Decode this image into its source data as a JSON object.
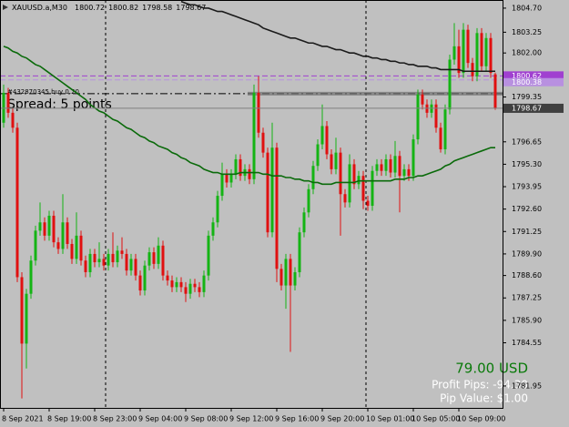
{
  "chart_data": {
    "type": "candlestick",
    "title": "XAUUSD.a,M30",
    "categories": [
      "8 Sep 2021",
      null,
      null,
      null,
      null,
      null,
      null,
      null,
      null,
      null,
      "8 Sep 19:00",
      null,
      null,
      null,
      null,
      null,
      null,
      null,
      null,
      null,
      "8 Sep 23:00",
      null,
      null,
      null,
      null,
      null,
      null,
      null,
      null,
      null,
      "9 Sep 04:00",
      null,
      null,
      null,
      null,
      null,
      null,
      null,
      null,
      null,
      "9 Sep 08:00",
      null,
      null,
      null,
      null,
      null,
      null,
      null,
      null,
      null,
      "9 Sep 12:00",
      null,
      null,
      null,
      null,
      null,
      null,
      null,
      null,
      null,
      "9 Sep 16:00",
      null,
      null,
      null,
      null,
      null,
      null,
      null,
      null,
      null,
      "9 Sep 20:00",
      null,
      null,
      null,
      null,
      null,
      null,
      null,
      null,
      null,
      "10 Sep 01:00",
      null,
      null,
      null,
      null,
      null,
      null,
      null,
      null,
      null,
      "10 Sep 05:00",
      null,
      null,
      null,
      null,
      null,
      null,
      null,
      null,
      null,
      "10 Sep 09:00",
      null,
      null,
      null,
      null,
      null,
      null,
      null,
      null
    ],
    "open": [
      1797.8,
      1799.6,
      1798.4,
      1797.5,
      1788.5,
      1784.5,
      1787.5,
      1789.5,
      1791.3,
      1791.8,
      1791.0,
      1792.2,
      1790.6,
      1790.2,
      1791.8,
      1790.5,
      1789.6,
      1791.0,
      1789.5,
      1788.8,
      1789.9,
      1789.4,
      1789.6,
      1789.2,
      1789.9,
      1789.4,
      1790.1,
      1789.9,
      1788.9,
      1789.6,
      1788.6,
      1787.7,
      1789.2,
      1790.0,
      1789.3,
      1790.4,
      1788.6,
      1788.3,
      1787.9,
      1788.2,
      1787.9,
      1787.5,
      1788.1,
      1787.9,
      1787.6,
      1788.6,
      1791.0,
      1791.8,
      1793.4,
      1794.7,
      1794.2,
      1794.7,
      1795.6,
      1794.6,
      1795.0,
      1794.4,
      1799.6,
      1797.2,
      1796.0,
      1791.2,
      1796.3,
      1789.0,
      1788.0,
      1789.6,
      1788.0,
      1788.8,
      1791.2,
      1792.4,
      1793.8,
      1795.2,
      1796.5,
      1797.6,
      1795.9,
      1795.0,
      1796.0,
      1793.5,
      1793.0,
      1795.3,
      1794.1,
      1794.6,
      1793.1,
      1792.8,
      1794.9,
      1795.3,
      1794.9,
      1795.6,
      1794.8,
      1795.8,
      1794.6,
      1795.0,
      1794.6,
      1796.8,
      1799.5,
      1798.9,
      1798.4,
      1798.9,
      1797.5,
      1796.2,
      1798.6,
      1801.6,
      1802.4,
      1800.8,
      1803.4,
      1801.4,
      1800.6,
      1803.2,
      1801.2,
      1802.9,
      1800.72
    ],
    "high": [
      1800.1,
      1799.9,
      1798.7,
      1797.8,
      1788.8,
      1787.8,
      1789.8,
      1791.6,
      1793.0,
      1792.1,
      1792.5,
      1792.5,
      1790.9,
      1793.5,
      1792.1,
      1790.8,
      1792.4,
      1791.3,
      1789.8,
      1790.2,
      1790.2,
      1790.6,
      1789.9,
      1790.2,
      1791.2,
      1790.4,
      1790.9,
      1790.2,
      1789.9,
      1789.9,
      1788.9,
      1789.5,
      1790.3,
      1790.3,
      1790.9,
      1790.7,
      1788.9,
      1788.6,
      1788.5,
      1788.5,
      1788.2,
      1788.4,
      1788.4,
      1788.2,
      1788.9,
      1791.3,
      1792.1,
      1793.7,
      1795.4,
      1795.0,
      1795.0,
      1795.9,
      1795.9,
      1795.3,
      1795.3,
      1800.1,
      1800.6,
      1797.5,
      1796.3,
      1797.8,
      1796.6,
      1789.3,
      1789.9,
      1789.9,
      1789.1,
      1791.5,
      1792.7,
      1794.1,
      1795.5,
      1796.8,
      1798.9,
      1797.9,
      1796.2,
      1796.9,
      1796.3,
      1793.8,
      1795.9,
      1795.6,
      1794.9,
      1794.9,
      1793.4,
      1795.2,
      1795.6,
      1795.6,
      1795.9,
      1795.9,
      1796.7,
      1796.1,
      1795.3,
      1795.3,
      1797.1,
      1799.8,
      1799.8,
      1799.2,
      1799.2,
      1799.2,
      1797.8,
      1798.9,
      1801.9,
      1803.8,
      1803.4,
      1803.8,
      1803.7,
      1801.7,
      1803.5,
      1803.5,
      1803.2,
      1803.2,
      1800.82
    ],
    "low": [
      1797.5,
      1798.1,
      1797.2,
      1788.2,
      1781.2,
      1783.0,
      1787.2,
      1789.2,
      1791.0,
      1790.7,
      1790.7,
      1790.3,
      1789.9,
      1789.9,
      1790.2,
      1789.3,
      1789.3,
      1789.2,
      1788.5,
      1788.5,
      1789.1,
      1789.1,
      1788.9,
      1788.9,
      1789.1,
      1789.1,
      1789.6,
      1788.6,
      1788.6,
      1788.3,
      1787.4,
      1787.4,
      1788.9,
      1789.0,
      1789.0,
      1788.3,
      1788.0,
      1787.6,
      1787.6,
      1787.6,
      1787.0,
      1787.2,
      1787.6,
      1787.3,
      1787.3,
      1788.3,
      1790.7,
      1791.5,
      1793.1,
      1793.9,
      1793.9,
      1794.4,
      1794.3,
      1794.3,
      1794.1,
      1794.1,
      1796.9,
      1795.7,
      1790.9,
      1790.9,
      1788.2,
      1787.7,
      1786.6,
      1784.0,
      1787.7,
      1788.5,
      1790.9,
      1792.1,
      1793.5,
      1794.9,
      1796.2,
      1795.6,
      1794.7,
      1794.7,
      1791.0,
      1792.7,
      1792.7,
      1793.8,
      1793.8,
      1792.6,
      1792.5,
      1792.5,
      1794.6,
      1794.6,
      1794.6,
      1794.5,
      1794.5,
      1792.4,
      1794.3,
      1794.3,
      1794.3,
      1796.5,
      1798.6,
      1798.1,
      1798.1,
      1797.2,
      1796.0,
      1795.9,
      1798.3,
      1801.3,
      1800.5,
      1800.5,
      1801.1,
      1800.3,
      1800.3,
      1800.9,
      1800.9,
      1800.5,
      1798.58
    ],
    "close": [
      1799.6,
      1798.4,
      1797.5,
      1788.5,
      1784.5,
      1787.5,
      1789.5,
      1791.3,
      1791.8,
      1791.0,
      1792.2,
      1790.6,
      1790.2,
      1791.8,
      1790.5,
      1789.6,
      1791.0,
      1789.5,
      1788.8,
      1789.9,
      1789.4,
      1789.6,
      1789.2,
      1789.9,
      1789.4,
      1790.1,
      1789.9,
      1788.9,
      1789.6,
      1788.6,
      1787.7,
      1789.2,
      1790.0,
      1789.3,
      1790.4,
      1788.6,
      1788.3,
      1787.9,
      1788.2,
      1787.9,
      1787.5,
      1788.1,
      1787.9,
      1787.6,
      1788.6,
      1791.0,
      1791.8,
      1793.4,
      1794.7,
      1794.2,
      1794.7,
      1795.6,
      1794.6,
      1795.0,
      1794.4,
      1799.6,
      1797.2,
      1796.0,
      1791.2,
      1796.3,
      1789.0,
      1788.0,
      1789.6,
      1788.0,
      1788.8,
      1791.2,
      1792.4,
      1793.8,
      1795.2,
      1796.5,
      1797.6,
      1795.9,
      1795.0,
      1796.0,
      1793.5,
      1793.0,
      1795.3,
      1794.1,
      1794.6,
      1793.1,
      1792.8,
      1794.9,
      1795.3,
      1794.9,
      1795.6,
      1794.8,
      1795.8,
      1794.6,
      1795.0,
      1794.6,
      1796.8,
      1799.5,
      1798.9,
      1798.4,
      1798.9,
      1797.5,
      1796.2,
      1798.6,
      1801.6,
      1802.4,
      1800.8,
      1803.4,
      1801.4,
      1800.6,
      1803.2,
      1801.2,
      1802.9,
      1800.8,
      1798.67
    ],
    "up_color": "#14b414",
    "down_color": "#e01010",
    "series": [
      {
        "type": "line",
        "color": "#0a6a0a",
        "values": [
          1802.4,
          1802.3,
          1802.1,
          1802.0,
          1801.8,
          1801.7,
          1801.5,
          1801.3,
          1801.2,
          1801.0,
          1800.8,
          1800.6,
          1800.4,
          1800.2,
          1800.0,
          1799.8,
          1799.6,
          1799.4,
          1799.2,
          1798.9,
          1798.7,
          1798.5,
          1798.4,
          1798.2,
          1798.0,
          1797.9,
          1797.7,
          1797.5,
          1797.4,
          1797.2,
          1797.0,
          1796.9,
          1796.7,
          1796.6,
          1796.4,
          1796.3,
          1796.2,
          1796.0,
          1795.9,
          1795.7,
          1795.6,
          1795.4,
          1795.3,
          1795.2,
          1795.0,
          1794.9,
          1794.8,
          1794.8,
          1794.7,
          1794.7,
          1794.7,
          1794.7,
          1794.8,
          1794.8,
          1794.8,
          1794.8,
          1794.8,
          1794.7,
          1794.7,
          1794.6,
          1794.6,
          1794.6,
          1794.5,
          1794.5,
          1794.4,
          1794.4,
          1794.3,
          1794.3,
          1794.2,
          1794.2,
          1794.1,
          1794.1,
          1794.1,
          1794.2,
          1794.2,
          1794.2,
          1794.2,
          1794.2,
          1794.3,
          1794.3,
          1794.3,
          1794.3,
          1794.3,
          1794.3,
          1794.3,
          1794.3,
          1794.4,
          1794.4,
          1794.4,
          1794.5,
          1794.5,
          1794.6,
          1794.6,
          1794.7,
          1794.8,
          1794.9,
          1795.0,
          1795.2,
          1795.3,
          1795.5,
          1795.6,
          1795.7,
          1795.8,
          1795.9,
          1796.0,
          1796.1,
          1796.2,
          1796.3,
          1796.3
        ]
      },
      {
        "type": "line",
        "color": "#1a1a1a",
        "values": [
          null,
          null,
          null,
          null,
          null,
          null,
          null,
          null,
          null,
          null,
          null,
          null,
          null,
          null,
          null,
          null,
          null,
          null,
          null,
          null,
          null,
          null,
          null,
          null,
          null,
          null,
          null,
          null,
          null,
          null,
          null,
          null,
          null,
          null,
          null,
          null,
          null,
          null,
          null,
          1805.1,
          1805.0,
          1804.9,
          1804.9,
          1804.8,
          1804.7,
          1804.7,
          1804.6,
          1804.5,
          1804.5,
          1804.4,
          1804.3,
          1804.2,
          1804.1,
          1804.0,
          1803.9,
          1803.8,
          1803.7,
          1803.5,
          1803.4,
          1803.3,
          1803.2,
          1803.1,
          1803.0,
          1802.9,
          1802.9,
          1802.8,
          1802.7,
          1802.6,
          1802.6,
          1802.5,
          1802.4,
          1802.4,
          1802.3,
          1802.2,
          1802.2,
          1802.1,
          1802.0,
          1802.0,
          1801.9,
          1801.8,
          1801.8,
          1801.7,
          1801.7,
          1801.6,
          1801.6,
          1801.5,
          1801.5,
          1801.4,
          1801.4,
          1801.3,
          1801.3,
          1801.2,
          1801.2,
          1801.2,
          1801.1,
          1801.1,
          1801.0,
          1801.0,
          1801.0,
          1801.0,
          1801.0,
          1800.9,
          1800.9,
          1800.9,
          1800.9,
          1800.9,
          1800.9,
          1800.9,
          1800.9
        ]
      }
    ],
    "ylim": [
      1780.63,
      1805.19
    ],
    "yticks": [
      {
        "value": 1804.7,
        "label": "1804.70"
      },
      {
        "value": 1803.25,
        "label": "1803.25"
      },
      {
        "value": 1802.0,
        "label": "1802.00"
      },
      {
        "value": 1799.35,
        "label": "1799.35"
      },
      {
        "value": 1796.65,
        "label": "1796.65"
      },
      {
        "value": 1795.3,
        "label": "1795.30"
      },
      {
        "value": 1793.95,
        "label": "1793.95"
      },
      {
        "value": 1792.6,
        "label": "1792.60"
      },
      {
        "value": 1791.25,
        "label": "1791.25"
      },
      {
        "value": 1789.9,
        "label": "1789.90"
      },
      {
        "value": 1788.6,
        "label": "1788.60"
      },
      {
        "value": 1787.25,
        "label": "1787.25"
      },
      {
        "value": 1785.9,
        "label": "1785.90"
      },
      {
        "value": 1784.55,
        "label": "1784.55"
      },
      {
        "value": 1781.95,
        "label": "1781.95"
      }
    ],
    "levels": [
      {
        "value": 1800.62,
        "color": "#a040d0"
      },
      {
        "value": 1800.38,
        "color": "#b890e0"
      }
    ],
    "order": {
      "value": 1799.55,
      "label": "#432870345 buy 0.20"
    },
    "annotations": {
      "spread": "Spread: 5 points",
      "profit": "79.00 USD",
      "profit_pips": "Profit Pips: -94.30",
      "pip_value": "Pip Value: $1.00"
    }
  }
}
